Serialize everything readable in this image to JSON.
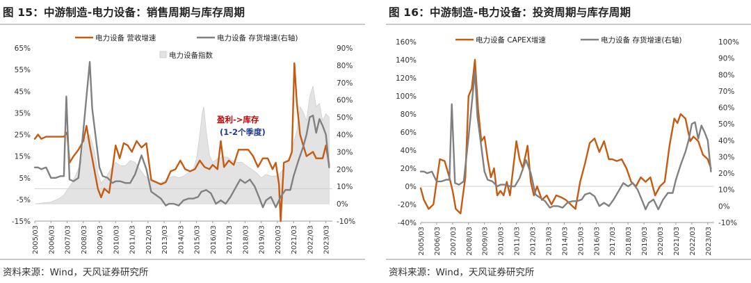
{
  "charts": [
    {
      "title": "图 15：中游制造-电力设备：销售周期与库存周期",
      "source": "资料来源：Wind，天风证券研究所"
    },
    {
      "title": "图 16：中游制造-电力设备：投资周期与库存周期",
      "source": "资料来源：Wind，天风证券研究所"
    }
  ],
  "chart_data": [
    {
      "type": "line",
      "title": "图 15：中游制造-电力设备：销售周期与库存周期",
      "x_ticks": [
        "2005/03",
        "2006/03",
        "2007/03",
        "2008/03",
        "2009/03",
        "2010/03",
        "2011/03",
        "2012/03",
        "2013/03",
        "2014/03",
        "2015/03",
        "2016/03",
        "2017/03",
        "2018/03",
        "2019/03",
        "2020/03",
        "2021/03",
        "2022/03",
        "2023/03"
      ],
      "x_range": [
        2005.0,
        2023.4
      ],
      "y_left": {
        "ticks": [
          "65%",
          "55%",
          "45%",
          "35%",
          "25%",
          "15%",
          "5%",
          "-5%",
          "-15%"
        ],
        "range": [
          -15,
          65
        ]
      },
      "y_right": {
        "ticks": [
          "90%",
          "80%",
          "70%",
          "60%",
          "50%",
          "40%",
          "30%",
          "20%",
          "10%",
          "0%",
          "-10%"
        ],
        "range": [
          -10,
          90
        ]
      },
      "legend": [
        "电力设备 营收增速",
        "电力设备 存货增速(右轴)",
        "电力设备指数"
      ],
      "annotations": [
        {
          "text": "盈利->库存",
          "color": "#c00000"
        },
        {
          "text": "(1-2个季度)",
          "color": "#1f3a8a"
        }
      ],
      "series": [
        {
          "name": "电力设备 营收增速",
          "axis": "left",
          "color": "#c55a11",
          "x": [
            2005.0,
            2005.2,
            2005.4,
            2005.7,
            2006.0,
            2006.3,
            2006.6,
            2006.8,
            2007.0,
            2007.15,
            2007.4,
            2007.7,
            2008.0,
            2008.2,
            2008.4,
            2008.7,
            2008.9,
            2009.1,
            2009.3,
            2009.6,
            2010.0,
            2010.25,
            2010.5,
            2010.75,
            2011.0,
            2011.3,
            2011.6,
            2011.9,
            2012.2,
            2012.5,
            2012.8,
            2013.1,
            2013.4,
            2013.7,
            2014.0,
            2014.3,
            2014.6,
            2014.9,
            2015.2,
            2015.5,
            2015.8,
            2016.0,
            2016.3,
            2016.5,
            2016.7,
            2017.0,
            2017.3,
            2017.6,
            2017.9,
            2018.2,
            2018.5,
            2018.8,
            2019.1,
            2019.4,
            2019.7,
            2019.9,
            2020.1,
            2020.2,
            2020.4,
            2020.7,
            2020.9,
            2021.05,
            2021.2,
            2021.4,
            2021.6,
            2021.8,
            2022.0,
            2022.2,
            2022.4,
            2022.6,
            2022.8,
            2023.0,
            2023.2
          ],
          "y": [
            23,
            25,
            23,
            24,
            24,
            24,
            24,
            24,
            26,
            12,
            15,
            18,
            22,
            29,
            20,
            8,
            0,
            -4,
            0,
            -2,
            20,
            14,
            21,
            20,
            17,
            22,
            19,
            21,
            4,
            3,
            2,
            3,
            8,
            9,
            13,
            9,
            8,
            9,
            13,
            10,
            9,
            11,
            9,
            22,
            10,
            13,
            11,
            18,
            18,
            18,
            15,
            10,
            14,
            14,
            9,
            12,
            2,
            -15,
            12,
            13,
            17,
            58,
            40,
            25,
            20,
            15,
            16,
            17,
            14,
            14,
            14,
            20,
            11
          ]
        },
        {
          "name": "电力设备 存货增速(右轴)",
          "axis": "right",
          "color": "#808080",
          "x": [
            2005.0,
            2005.2,
            2005.4,
            2005.7,
            2006.0,
            2006.3,
            2006.6,
            2006.8,
            2006.95,
            2007.15,
            2007.4,
            2007.7,
            2008.0,
            2008.2,
            2008.4,
            2008.55,
            2008.75,
            2009.0,
            2009.2,
            2009.5,
            2009.8,
            2010.0,
            2010.3,
            2010.6,
            2010.9,
            2011.2,
            2011.6,
            2011.9,
            2012.2,
            2012.5,
            2012.8,
            2013.1,
            2013.3,
            2013.6,
            2013.9,
            2014.2,
            2014.5,
            2014.8,
            2015.1,
            2015.3,
            2015.6,
            2015.9,
            2016.2,
            2016.5,
            2016.8,
            2017.1,
            2017.4,
            2017.7,
            2018.0,
            2018.3,
            2018.6,
            2018.9,
            2019.1,
            2019.3,
            2019.6,
            2019.9,
            2020.2,
            2020.5,
            2020.8,
            2021.0,
            2021.3,
            2021.6,
            2021.8,
            2022.0,
            2022.2,
            2022.4,
            2022.6,
            2022.8,
            2023.0,
            2023.2
          ],
          "y": [
            21,
            21,
            20,
            21,
            15,
            15,
            16,
            16,
            62,
            14,
            13,
            15,
            42,
            62,
            82,
            55,
            40,
            21,
            16,
            15,
            12,
            13,
            13,
            12,
            12,
            17,
            28,
            20,
            7,
            5,
            3,
            -1,
            0,
            0,
            -1,
            2,
            3,
            3,
            4,
            7,
            8,
            6,
            0,
            2,
            0,
            4,
            9,
            14,
            12,
            14,
            10,
            3,
            -2,
            2,
            4,
            -2,
            4,
            8,
            8,
            16,
            25,
            33,
            40,
            50,
            51,
            41,
            49,
            45,
            40,
            21
          ]
        },
        {
          "name": "电力设备指数",
          "axis": "right",
          "color": "#c0c0c0",
          "x": [
            2005.0,
            2005.5,
            2006.0,
            2006.5,
            2006.8,
            2007.0,
            2007.3,
            2007.6,
            2007.9,
            2008.1,
            2008.4,
            2008.7,
            2008.9,
            2009.1,
            2009.4,
            2009.7,
            2010.0,
            2010.3,
            2010.6,
            2010.9,
            2011.2,
            2011.5,
            2011.8,
            2012.1,
            2012.4,
            2012.7,
            2013.0,
            2013.3,
            2013.6,
            2013.9,
            2014.2,
            2014.5,
            2014.8,
            2015.0,
            2015.2,
            2015.35,
            2015.45,
            2015.6,
            2015.8,
            2016.0,
            2016.3,
            2016.6,
            2016.9,
            2017.2,
            2017.5,
            2017.8,
            2018.1,
            2018.4,
            2018.7,
            2019.0,
            2019.3,
            2019.6,
            2019.9,
            2020.2,
            2020.5,
            2020.8,
            2021.0,
            2021.2,
            2021.4,
            2021.6,
            2021.8,
            2022.0,
            2022.2,
            2022.4,
            2022.6,
            2022.8,
            2023.0,
            2023.2
          ],
          "y": [
            0,
            0.5,
            1,
            3,
            5,
            8,
            12,
            18,
            25,
            38,
            40,
            30,
            18,
            12,
            15,
            20,
            24,
            22,
            22,
            25,
            24,
            20,
            16,
            14,
            13,
            12,
            13,
            15,
            16,
            15,
            16,
            18,
            20,
            26,
            40,
            52,
            56,
            42,
            28,
            24,
            26,
            27,
            27,
            25,
            24,
            24,
            22,
            20,
            18,
            15,
            17,
            16,
            16,
            18,
            22,
            28,
            35,
            42,
            56,
            53,
            48,
            62,
            68,
            56,
            58,
            48,
            52,
            50
          ]
        }
      ]
    },
    {
      "type": "line",
      "title": "图 16：中游制造-电力设备：投资周期与库存周期",
      "x_ticks": [
        "2005/03",
        "2006/03",
        "2007/03",
        "2008/03",
        "2009/03",
        "2010/03",
        "2011/03",
        "2012/03",
        "2013/03",
        "2014/03",
        "2015/03",
        "2016/03",
        "2017/03",
        "2018/03",
        "2019/03",
        "2020/03",
        "2021/03",
        "2022/03",
        "2023/03"
      ],
      "x_range": [
        2005.0,
        2023.4
      ],
      "y_left": {
        "ticks": [
          "160%",
          "140%",
          "120%",
          "100%",
          "80%",
          "60%",
          "40%",
          "20%",
          "0%",
          "-20%",
          "-40%"
        ],
        "range": [
          -40,
          160
        ]
      },
      "y_right": {
        "ticks": [
          "100%",
          "90%",
          "80%",
          "70%",
          "60%",
          "50%",
          "40%",
          "30%",
          "20%",
          "10%",
          "0%",
          "-10%"
        ],
        "range": [
          -10,
          100
        ]
      },
      "legend": [
        "电力设备 CAPEX增速",
        "电力设备 存货增速(右轴)"
      ],
      "series": [
        {
          "name": "电力设备 CAPEX增速",
          "axis": "left",
          "color": "#c55a11",
          "x": [
            2005.0,
            2005.2,
            2005.5,
            2005.8,
            2006.0,
            2006.2,
            2006.5,
            2006.8,
            2007.0,
            2007.2,
            2007.5,
            2007.8,
            2008.0,
            2008.2,
            2008.4,
            2008.6,
            2008.8,
            2009.0,
            2009.2,
            2009.4,
            2009.6,
            2009.8,
            2010.0,
            2010.2,
            2010.4,
            2010.6,
            2010.8,
            2011.0,
            2011.2,
            2011.4,
            2011.7,
            2011.9,
            2012.1,
            2012.3,
            2012.6,
            2012.9,
            2013.2,
            2013.5,
            2013.8,
            2014.1,
            2014.4,
            2014.7,
            2015.0,
            2015.3,
            2015.6,
            2015.9,
            2016.2,
            2016.5,
            2016.8,
            2017.0,
            2017.3,
            2017.6,
            2017.9,
            2018.2,
            2018.5,
            2018.8,
            2019.1,
            2019.4,
            2019.7,
            2020.0,
            2020.3,
            2020.6,
            2020.9,
            2021.1,
            2021.3,
            2021.6,
            2021.9,
            2022.1,
            2022.4,
            2022.7,
            2023.0,
            2023.2
          ],
          "y": [
            -2,
            -15,
            -25,
            -20,
            5,
            30,
            28,
            10,
            -5,
            -25,
            -30,
            10,
            100,
            108,
            140,
            85,
            50,
            55,
            30,
            10,
            20,
            -10,
            -5,
            -10,
            5,
            -10,
            20,
            50,
            30,
            20,
            45,
            5,
            -10,
            0,
            -15,
            -10,
            -20,
            -10,
            -12,
            -15,
            -20,
            -25,
            5,
            25,
            48,
            53,
            38,
            50,
            30,
            30,
            28,
            30,
            20,
            5,
            0,
            10,
            5,
            10,
            -10,
            0,
            5,
            45,
            75,
            70,
            80,
            75,
            50,
            55,
            50,
            35,
            30,
            20
          ]
        },
        {
          "name": "电力设备 存货增速(右轴)",
          "axis": "right",
          "color": "#808080",
          "x": [
            2005.0,
            2005.2,
            2005.4,
            2005.7,
            2006.0,
            2006.3,
            2006.6,
            2006.8,
            2006.95,
            2007.15,
            2007.4,
            2007.7,
            2008.0,
            2008.2,
            2008.4,
            2008.55,
            2008.75,
            2009.0,
            2009.2,
            2009.5,
            2009.8,
            2010.0,
            2010.3,
            2010.6,
            2010.9,
            2011.2,
            2011.6,
            2011.9,
            2012.2,
            2012.5,
            2012.8,
            2013.1,
            2013.3,
            2013.6,
            2013.9,
            2014.2,
            2014.5,
            2014.8,
            2015.1,
            2015.3,
            2015.6,
            2015.9,
            2016.2,
            2016.5,
            2016.8,
            2017.1,
            2017.4,
            2017.7,
            2018.0,
            2018.3,
            2018.6,
            2018.9,
            2019.1,
            2019.3,
            2019.6,
            2019.9,
            2020.2,
            2020.5,
            2020.8,
            2021.0,
            2021.3,
            2021.6,
            2021.8,
            2022.0,
            2022.2,
            2022.4,
            2022.6,
            2022.8,
            2023.0,
            2023.2
          ],
          "y": [
            21,
            21,
            20,
            21,
            15,
            15,
            16,
            16,
            62,
            14,
            13,
            15,
            42,
            62,
            82,
            55,
            40,
            21,
            16,
            15,
            12,
            13,
            13,
            12,
            12,
            17,
            28,
            20,
            7,
            5,
            3,
            -1,
            0,
            0,
            -1,
            2,
            3,
            3,
            4,
            7,
            8,
            6,
            0,
            2,
            0,
            4,
            9,
            14,
            12,
            14,
            10,
            3,
            -2,
            2,
            4,
            -2,
            4,
            8,
            8,
            16,
            25,
            33,
            40,
            50,
            51,
            41,
            49,
            45,
            40,
            21
          ]
        }
      ]
    }
  ]
}
